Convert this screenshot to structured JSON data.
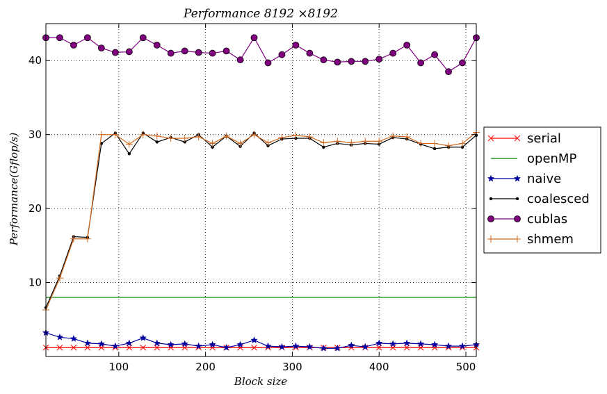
{
  "chart_data": {
    "type": "line",
    "title": "Performance 8192 ×8192",
    "xlabel": "Block size",
    "ylabel": "Performance(Gflop/s)",
    "xlim": [
      16,
      512
    ],
    "ylim": [
      0,
      45
    ],
    "xticks": [
      100,
      200,
      300,
      400,
      500
    ],
    "yticks": [
      10,
      20,
      30,
      40
    ],
    "grid": true,
    "legend_position": "outside-right",
    "x": [
      16,
      32,
      48,
      64,
      80,
      96,
      112,
      128,
      144,
      160,
      176,
      192,
      208,
      224,
      240,
      256,
      272,
      288,
      304,
      320,
      336,
      352,
      368,
      384,
      400,
      416,
      432,
      448,
      464,
      480,
      496,
      512
    ],
    "series": [
      {
        "name": "serial",
        "color": "#ff0000",
        "marker": "x",
        "values": [
          1.2,
          1.2,
          1.2,
          1.2,
          1.2,
          1.2,
          1.2,
          1.2,
          1.2,
          1.2,
          1.2,
          1.2,
          1.2,
          1.2,
          1.2,
          1.2,
          1.2,
          1.2,
          1.2,
          1.2,
          1.2,
          1.2,
          1.2,
          1.2,
          1.2,
          1.2,
          1.2,
          1.2,
          1.2,
          1.2,
          1.2,
          1.2
        ]
      },
      {
        "name": "openMP",
        "color": "#008000",
        "marker": "none",
        "values": [
          8.0,
          8.0,
          8.0,
          8.0,
          8.0,
          8.0,
          8.0,
          8.0,
          8.0,
          8.0,
          8.0,
          8.0,
          8.0,
          8.0,
          8.0,
          8.0,
          8.0,
          8.0,
          8.0,
          8.0,
          8.0,
          8.0,
          8.0,
          8.0,
          8.0,
          8.0,
          8.0,
          8.0,
          8.0,
          8.0,
          8.0,
          8.0
        ]
      },
      {
        "name": "naive",
        "color": "#0000a0",
        "marker": "star",
        "values": [
          3.2,
          2.6,
          2.4,
          1.8,
          1.7,
          1.4,
          1.8,
          2.5,
          1.8,
          1.6,
          1.7,
          1.4,
          1.6,
          1.2,
          1.6,
          2.2,
          1.4,
          1.3,
          1.4,
          1.3,
          1.1,
          1.1,
          1.5,
          1.3,
          1.8,
          1.7,
          1.8,
          1.7,
          1.6,
          1.4,
          1.4,
          1.6
        ]
      },
      {
        "name": "coalesced",
        "color": "#000000",
        "marker": "dot",
        "values": [
          6.6,
          10.9,
          16.2,
          16.1,
          28.8,
          30.2,
          27.4,
          30.2,
          29.0,
          29.6,
          29.0,
          30.0,
          28.3,
          29.8,
          28.4,
          30.2,
          28.5,
          29.4,
          29.5,
          29.5,
          28.3,
          28.8,
          28.6,
          28.8,
          28.7,
          29.6,
          29.4,
          28.7,
          28.1,
          28.3,
          28.3,
          29.9
        ]
      },
      {
        "name": "cublas",
        "color": "#800080",
        "marker": "circle",
        "values": [
          43.1,
          43.1,
          42.1,
          43.1,
          41.7,
          41.1,
          41.2,
          43.1,
          42.1,
          41.0,
          41.3,
          41.1,
          41.0,
          41.3,
          40.1,
          43.1,
          39.7,
          40.8,
          42.1,
          41.0,
          40.1,
          39.8,
          39.9,
          39.9,
          40.2,
          41.0,
          42.1,
          39.7,
          40.8,
          38.5,
          39.7,
          43.1
        ]
      },
      {
        "name": "shmem",
        "color": "#d2691e",
        "marker": "plus",
        "values": [
          6.3,
          10.6,
          15.9,
          15.9,
          30.0,
          30.0,
          28.7,
          30.0,
          29.8,
          29.5,
          29.5,
          29.7,
          28.8,
          29.8,
          28.8,
          30.0,
          28.9,
          29.6,
          29.9,
          29.7,
          28.9,
          29.1,
          28.9,
          29.1,
          29.1,
          29.8,
          29.7,
          28.8,
          28.8,
          28.5,
          28.8,
          30.3
        ]
      }
    ]
  }
}
